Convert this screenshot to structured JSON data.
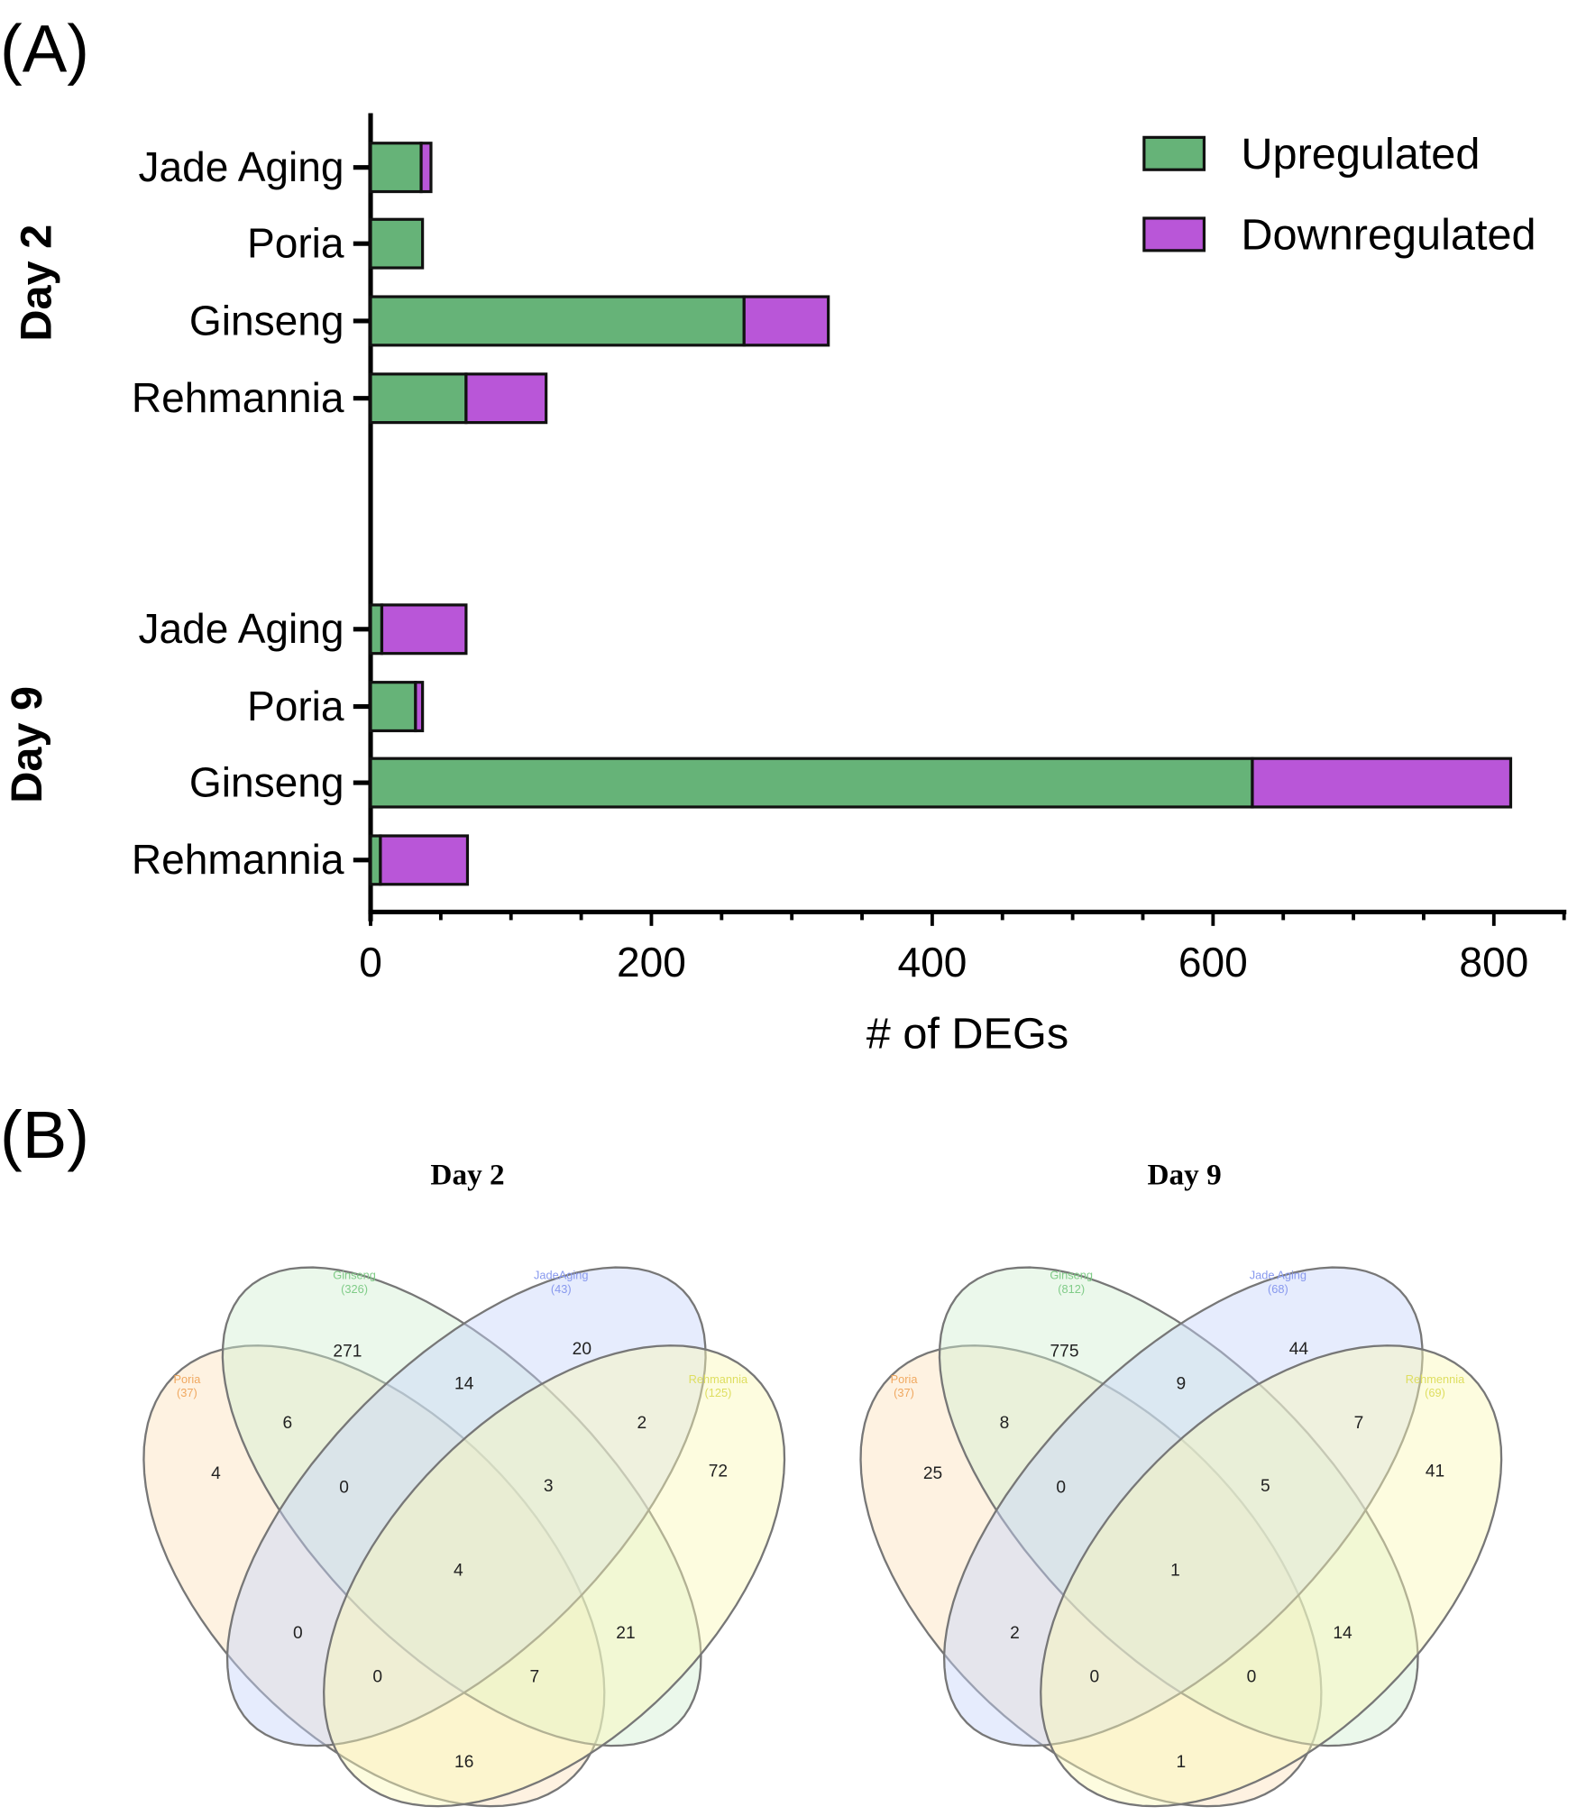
{
  "chart_data": [
    {
      "type": "bar",
      "orientation": "horizontal",
      "stacked": true,
      "panel_label": "(A)",
      "xlabel": "# of DEGs",
      "xlim": [
        0,
        850
      ],
      "xticks": [
        0,
        200,
        400,
        600,
        800
      ],
      "groups": [
        {
          "name": "Day 2",
          "categories": [
            "Jade Aging",
            "Poria",
            "Ginseng",
            "Rehmannia"
          ]
        },
        {
          "name": "Day 9",
          "categories": [
            "Jade Aging",
            "Poria",
            "Ginseng",
            "Rehmannia"
          ]
        }
      ],
      "series": [
        {
          "name": "Upregulated",
          "color": "#66b378",
          "values": [
            36,
            37,
            266,
            68,
            8,
            32,
            628,
            7
          ]
        },
        {
          "name": "Downregulated",
          "color": "#b956d8",
          "values": [
            7,
            0,
            60,
            57,
            60,
            5,
            184,
            62
          ]
        }
      ],
      "legend": "top-right"
    },
    {
      "type": "venn",
      "panel_label": "(B)",
      "title": "Day 2",
      "sets": [
        {
          "name": "Poria",
          "count": "(37)",
          "color": "#f0a860"
        },
        {
          "name": "Ginseng",
          "count": "(326)",
          "color": "#80cc88"
        },
        {
          "name": "JadeAging",
          "count": "(43)",
          "color": "#8899ee"
        },
        {
          "name": "Rehmannia",
          "count": "(125)",
          "color": "#dede60"
        }
      ],
      "regions": {
        "poria_only": "4",
        "ginseng_only": "271",
        "jade_only": "20",
        "rehmannia_only": "72",
        "poria_ginseng": "6",
        "ginseng_jade": "14",
        "jade_rehmannia": "2",
        "poria_ginseng_jade": "0",
        "ginseng_jade_rehmannia": "3",
        "all": "4",
        "poria_jade": "0",
        "ginseng_rehmannia": "21",
        "poria_jade_rehmannia": "0",
        "poria_ginseng_rehmannia": "7",
        "poria_rehmannia": "16"
      }
    },
    {
      "type": "venn",
      "title": "Day 9",
      "sets": [
        {
          "name": "Poria",
          "count": "(37)",
          "color": "#f0a860"
        },
        {
          "name": "Ginseng",
          "count": "(812)",
          "color": "#80cc88"
        },
        {
          "name": "Jade Aging",
          "count": "(68)",
          "color": "#8899ee"
        },
        {
          "name": "Rehmennia",
          "count": "(69)",
          "color": "#dede60"
        }
      ],
      "regions": {
        "poria_only": "25",
        "ginseng_only": "775",
        "jade_only": "44",
        "rehmannia_only": "41",
        "poria_ginseng": "8",
        "ginseng_jade": "9",
        "jade_rehmannia": "7",
        "poria_ginseng_jade": "0",
        "ginseng_jade_rehmannia": "5",
        "all": "1",
        "poria_jade": "2",
        "ginseng_rehmannia": "14",
        "poria_jade_rehmannia": "0",
        "poria_ginseng_rehmannia": "0",
        "poria_rehmannia": "1"
      }
    }
  ]
}
